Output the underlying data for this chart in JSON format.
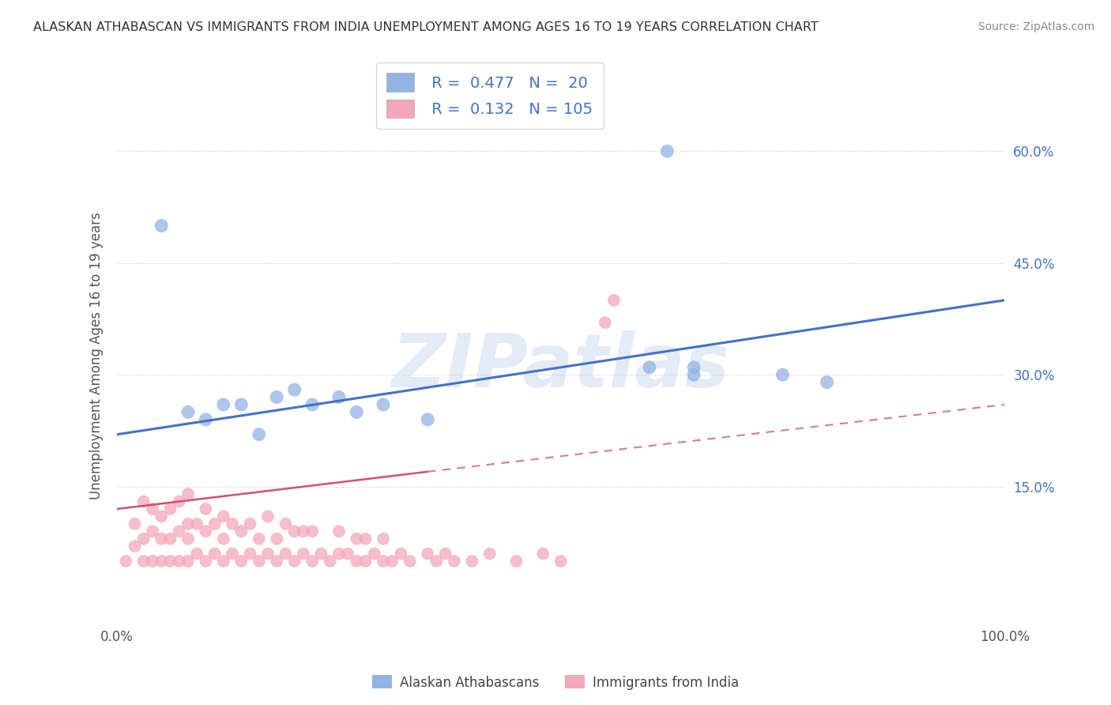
{
  "title": "ALASKAN ATHABASCAN VS IMMIGRANTS FROM INDIA UNEMPLOYMENT AMONG AGES 16 TO 19 YEARS CORRELATION CHART",
  "source": "Source: ZipAtlas.com",
  "ylabel": "Unemployment Among Ages 16 to 19 years",
  "xlim": [
    0,
    100
  ],
  "ylim": [
    -3,
    68
  ],
  "ytick_positions": [
    15,
    30,
    45,
    60
  ],
  "ytick_labels": [
    "15.0%",
    "30.0%",
    "45.0%",
    "60.0%"
  ],
  "blue_R": "0.477",
  "blue_N": "20",
  "pink_R": "0.132",
  "pink_N": "105",
  "blue_color": "#92b4e3",
  "pink_color": "#f4a7b9",
  "blue_line_color": "#4472c4",
  "pink_line_color": "#d05070",
  "pink_line_color_solid": "#d05070",
  "pink_line_color_dash": "#d08090",
  "watermark_text": "ZIPatlas",
  "legend_label_blue": "Alaskan Athabascans",
  "legend_label_pink": "Immigrants from India",
  "blue_scatter_x": [
    5,
    8,
    10,
    12,
    14,
    16,
    18,
    20,
    22,
    25,
    27,
    30,
    35,
    60,
    62,
    65,
    65,
    75,
    80
  ],
  "blue_scatter_y": [
    50,
    25,
    24,
    26,
    26,
    22,
    27,
    28,
    26,
    27,
    25,
    26,
    24,
    31,
    60,
    31,
    30,
    30,
    29
  ],
  "pink_scatter_x": [
    1,
    2,
    2,
    3,
    3,
    3,
    4,
    4,
    4,
    5,
    5,
    5,
    6,
    6,
    6,
    7,
    7,
    7,
    8,
    8,
    8,
    8,
    9,
    9,
    10,
    10,
    10,
    11,
    11,
    12,
    12,
    12,
    13,
    13,
    14,
    14,
    15,
    15,
    16,
    16,
    17,
    17,
    18,
    18,
    19,
    19,
    20,
    20,
    21,
    21,
    22,
    22,
    23,
    24,
    25,
    25,
    26,
    27,
    27,
    28,
    28,
    29,
    30,
    30,
    31,
    32,
    33,
    35,
    36,
    37,
    38,
    40,
    42,
    45,
    48,
    50,
    55,
    56
  ],
  "pink_scatter_y": [
    5,
    7,
    10,
    5,
    8,
    13,
    5,
    9,
    12,
    5,
    8,
    11,
    5,
    8,
    12,
    5,
    9,
    13,
    5,
    8,
    10,
    14,
    6,
    10,
    5,
    9,
    12,
    6,
    10,
    5,
    8,
    11,
    6,
    10,
    5,
    9,
    6,
    10,
    5,
    8,
    6,
    11,
    5,
    8,
    6,
    10,
    5,
    9,
    6,
    9,
    5,
    9,
    6,
    5,
    6,
    9,
    6,
    5,
    8,
    5,
    8,
    6,
    5,
    8,
    5,
    6,
    5,
    6,
    5,
    6,
    5,
    5,
    6,
    5,
    6,
    5,
    37,
    40
  ],
  "blue_trend_x0": 0,
  "blue_trend_y0": 22,
  "blue_trend_x1": 100,
  "blue_trend_y1": 40,
  "pink_solid_x0": 0,
  "pink_solid_y0": 12,
  "pink_solid_x1": 35,
  "pink_solid_y1": 17,
  "pink_dash_x0": 35,
  "pink_dash_y0": 17,
  "pink_dash_x1": 100,
  "pink_dash_y1": 26,
  "background_color": "#ffffff",
  "grid_color": "#cccccc",
  "title_color": "#333333",
  "source_color": "#888888"
}
